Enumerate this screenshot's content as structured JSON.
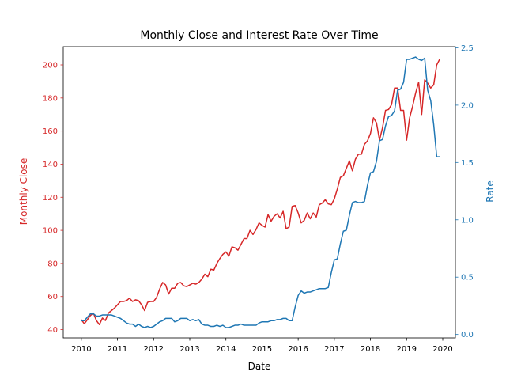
{
  "chart_data": {
    "type": "line",
    "title": "Monthly Close and Interest Rate Over Time",
    "xlabel": "Date",
    "ylabel_left": "Monthly Close",
    "ylabel_right": "Rate",
    "x_ticks": [
      "2010",
      "2011",
      "2012",
      "2013",
      "2014",
      "2015",
      "2016",
      "2017",
      "2018",
      "2019",
      "2020"
    ],
    "x_range": [
      2009.5,
      2020.35
    ],
    "y_left_range": [
      35,
      211
    ],
    "y_right_range": [
      -0.03,
      2.51
    ],
    "y_left_ticks": [
      40,
      60,
      80,
      100,
      120,
      140,
      160,
      180,
      200
    ],
    "y_right_ticks": [
      "0.0",
      "0.5",
      "1.0",
      "1.5",
      "2.0",
      "2.5"
    ],
    "grid": false,
    "colors": {
      "left": "#d62728",
      "right": "#1f77b4"
    },
    "series": [
      {
        "axis": "left",
        "color": "#d62728",
        "x_start": "2010-01",
        "step": "month",
        "values": [
          46,
          43.5,
          46,
          48.5,
          50,
          45.5,
          43,
          47,
          45.5,
          50,
          51.5,
          53,
          55,
          57,
          57,
          57.5,
          59,
          57,
          58,
          57.5,
          55,
          51.5,
          56.5,
          57,
          57,
          59.5,
          64.5,
          68.5,
          67,
          61.5,
          65,
          65,
          68,
          68.5,
          66.5,
          66,
          67,
          68,
          67.5,
          68.5,
          70.5,
          73.5,
          72,
          76.5,
          76,
          80,
          83,
          85.5,
          87,
          84.5,
          90,
          89.5,
          88,
          91.5,
          95,
          95,
          100,
          97.5,
          100.5,
          104.5,
          103,
          102,
          109.5,
          105.5,
          108.5,
          110,
          107.5,
          111.5,
          101,
          102,
          114.5,
          115,
          110.5,
          104.5,
          106,
          110.5,
          107,
          110.5,
          108,
          115.5,
          116.5,
          118.5,
          116,
          115.5,
          119,
          125,
          132,
          133,
          137.5,
          142,
          136,
          143,
          146,
          146,
          152,
          154,
          158.5,
          168,
          165,
          154.5,
          162,
          172.5,
          173,
          176,
          186,
          186,
          172.5,
          172.5,
          154.5,
          168,
          175,
          183,
          189.5,
          170,
          191,
          189,
          186,
          188,
          200,
          203.5
        ]
      },
      {
        "axis": "right",
        "color": "#1f77b4",
        "x_start": "2010-01",
        "step": "month",
        "values": [
          0.12,
          0.12,
          0.15,
          0.18,
          0.18,
          0.16,
          0.16,
          0.17,
          0.17,
          0.17,
          0.17,
          0.16,
          0.15,
          0.14,
          0.12,
          0.1,
          0.09,
          0.09,
          0.07,
          0.09,
          0.07,
          0.06,
          0.07,
          0.06,
          0.07,
          0.09,
          0.11,
          0.12,
          0.14,
          0.14,
          0.14,
          0.11,
          0.12,
          0.14,
          0.14,
          0.14,
          0.12,
          0.13,
          0.12,
          0.13,
          0.09,
          0.08,
          0.08,
          0.07,
          0.07,
          0.08,
          0.07,
          0.08,
          0.06,
          0.06,
          0.07,
          0.08,
          0.08,
          0.09,
          0.08,
          0.08,
          0.08,
          0.08,
          0.08,
          0.1,
          0.11,
          0.11,
          0.11,
          0.12,
          0.12,
          0.13,
          0.13,
          0.14,
          0.14,
          0.12,
          0.12,
          0.24,
          0.34,
          0.38,
          0.36,
          0.37,
          0.37,
          0.38,
          0.39,
          0.4,
          0.4,
          0.4,
          0.41,
          0.54,
          0.65,
          0.66,
          0.79,
          0.9,
          0.91,
          1.04,
          1.15,
          1.16,
          1.15,
          1.15,
          1.16,
          1.3,
          1.41,
          1.42,
          1.51,
          1.69,
          1.7,
          1.82,
          1.9,
          1.91,
          1.95,
          2.13,
          2.14,
          2.2,
          2.4,
          2.4,
          2.41,
          2.42,
          2.4,
          2.39,
          2.41,
          2.13,
          2.04,
          1.83,
          1.55,
          1.55
        ]
      }
    ]
  }
}
